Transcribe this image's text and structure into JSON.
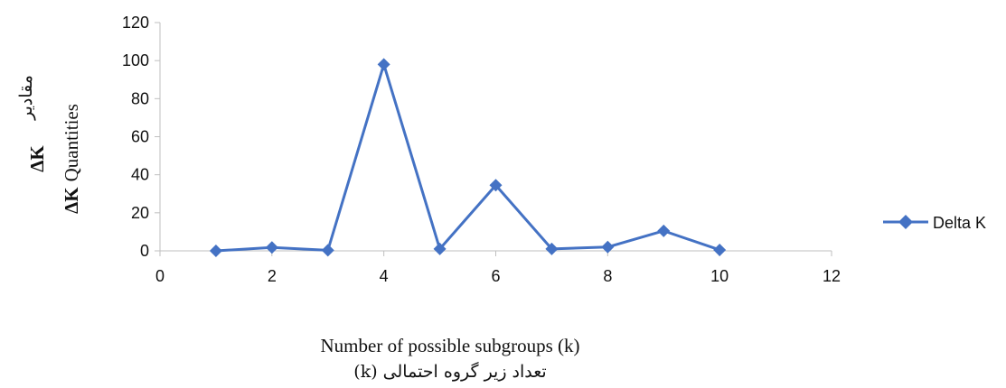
{
  "chart_data": {
    "type": "line",
    "title": "",
    "xlabel": "Number of possible subgroups (k)",
    "xlabel_fa": "تعداد زیر گروه احتمالی (k)",
    "ylabel_symbol": "ΔK",
    "ylabel": "Quantities",
    "ylabel_fa": "مقادیر",
    "xlim": [
      0,
      12
    ],
    "ylim": [
      0,
      120
    ],
    "x_ticks": [
      "0",
      "2",
      "4",
      "6",
      "8",
      "10",
      "12"
    ],
    "y_ticks": [
      "0",
      "20",
      "40",
      "60",
      "80",
      "100",
      "120"
    ],
    "grid": false,
    "legend_position": "right",
    "series": [
      {
        "name": "Delta K",
        "color": "#4472C4",
        "marker": "diamond",
        "x": [
          1,
          2,
          3,
          4,
          5,
          6,
          7,
          8,
          9,
          10
        ],
        "y": [
          0,
          1.8,
          0.3,
          98,
          1,
          34.5,
          1,
          2,
          10.5,
          0.5
        ]
      }
    ]
  }
}
